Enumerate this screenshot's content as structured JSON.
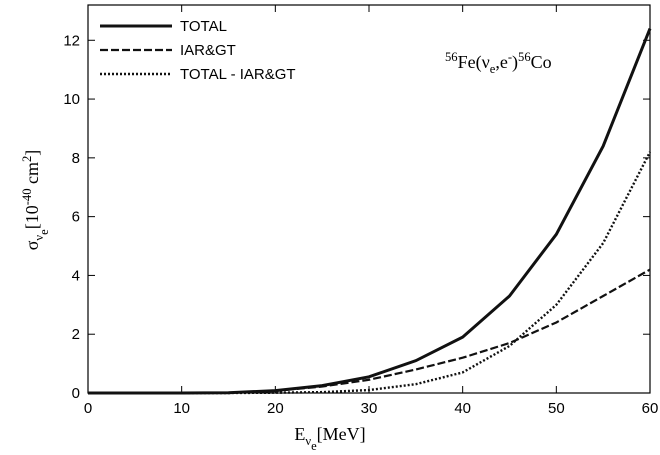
{
  "chart_data": {
    "type": "line",
    "annotation": [
      "56",
      "Fe(",
      "ν",
      "e",
      ",e",
      "-",
      ")",
      "56",
      "Co"
    ],
    "x_label": [
      "E",
      "ν",
      "e",
      "[MeV]"
    ],
    "y_label": [
      "σ",
      "ν",
      "e",
      "[10",
      "-40",
      " cm",
      "2",
      "]"
    ],
    "x": [
      0,
      5,
      10,
      15,
      20,
      25,
      30,
      35,
      40,
      45,
      50,
      55,
      60
    ],
    "series": [
      {
        "name": "TOTAL",
        "color": "#111111",
        "dash": "solid",
        "values": [
          0,
          0,
          0,
          0.01,
          0.08,
          0.25,
          0.55,
          1.1,
          1.9,
          3.3,
          5.4,
          8.4,
          12.4
        ]
      },
      {
        "name": "IAR&GT",
        "color": "#111111",
        "dash": "dashed",
        "values": [
          0,
          0,
          0,
          0.01,
          0.07,
          0.22,
          0.45,
          0.8,
          1.2,
          1.7,
          2.4,
          3.3,
          4.2
        ]
      },
      {
        "name": "TOTAL - IAR&GT",
        "color": "#111111",
        "dash": "dotted",
        "values": [
          0,
          0,
          0,
          0,
          0.01,
          0.03,
          0.1,
          0.3,
          0.7,
          1.6,
          3.0,
          5.1,
          8.2
        ]
      }
    ],
    "xlim": [
      0,
      60
    ],
    "ylim": [
      0,
      13.2
    ],
    "xticks": [
      0,
      10,
      20,
      30,
      40,
      50,
      60
    ],
    "yticks": [
      0,
      2,
      4,
      6,
      8,
      10,
      12
    ],
    "legend": "upper left"
  }
}
